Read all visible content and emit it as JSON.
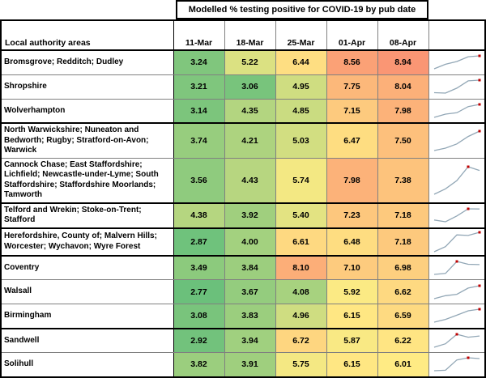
{
  "chart_data": {
    "type": "heatmap",
    "title": "Modelled % testing positive for COVID-19 by pub date",
    "row_label_header": "Local authority areas",
    "columns": [
      "11-Mar",
      "18-Mar",
      "25-Mar",
      "01-Apr",
      "08-Apr"
    ],
    "value_format": "2-decimals",
    "rows": [
      {
        "area": "Bromsgrove; Redditch; Dudley",
        "values": [
          3.24,
          5.22,
          6.44,
          8.56,
          8.94
        ]
      },
      {
        "area": "Shropshire",
        "values": [
          3.21,
          3.06,
          4.95,
          7.75,
          8.04
        ]
      },
      {
        "area": "Wolverhampton",
        "values": [
          3.14,
          4.35,
          4.85,
          7.15,
          7.98
        ]
      },
      {
        "area": "North Warwickshire; Nuneaton and Bedworth; Rugby; Stratford-on-Avon; Warwick",
        "values": [
          3.74,
          4.21,
          5.03,
          6.47,
          7.5
        ]
      },
      {
        "area": "Cannock Chase; East Staffordshire; Lichfield; Newcastle-under-Lyme; South Staffordshire; Staffordshire Moorlands; Tamworth",
        "values": [
          3.56,
          4.43,
          5.74,
          7.98,
          7.38
        ]
      },
      {
        "area": "Telford and Wrekin; Stoke-on-Trent; Stafford",
        "values": [
          4.38,
          3.92,
          5.4,
          7.23,
          7.18
        ]
      },
      {
        "area": "Herefordshire, County of; Malvern Hills; Worcester; Wychavon; Wyre Forest",
        "values": [
          2.87,
          4.0,
          6.61,
          6.48,
          7.18
        ]
      },
      {
        "area": "Coventry",
        "values": [
          3.49,
          3.84,
          8.1,
          7.1,
          6.98
        ]
      },
      {
        "area": "Walsall",
        "values": [
          2.77,
          3.67,
          4.08,
          5.92,
          6.62
        ]
      },
      {
        "area": "Birmingham",
        "values": [
          3.08,
          3.83,
          4.96,
          6.15,
          6.59
        ]
      },
      {
        "area": "Sandwell",
        "values": [
          2.92,
          3.94,
          6.72,
          5.87,
          6.22
        ]
      },
      {
        "area": "Solihull",
        "values": [
          3.82,
          3.91,
          5.75,
          6.15,
          6.01
        ]
      }
    ],
    "color_scale": {
      "stops": [
        {
          "value": 2.6,
          "color": "#63BE7B"
        },
        {
          "value": 6.0,
          "color": "#FFEB84"
        },
        {
          "value": 10.5,
          "color": "#F8696B"
        }
      ]
    },
    "sparkline": {
      "line_color": "#92A7B6",
      "high_point_marker_color": "#C00000",
      "marks": "high-point"
    }
  }
}
